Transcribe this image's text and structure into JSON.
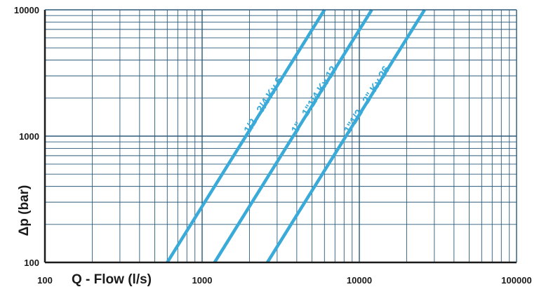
{
  "chart_data": {
    "type": "line",
    "title": "",
    "xlabel": "Q - Flow (l/s)",
    "ylabel": "Δp (bar)",
    "x_scale": "log",
    "y_scale": "log",
    "xlim": [
      100,
      100000
    ],
    "ylim": [
      100,
      10000
    ],
    "x_ticks": [
      "100",
      "1000",
      "10000",
      "100000"
    ],
    "y_ticks": [
      "100",
      "1000",
      "10000"
    ],
    "grid": true,
    "legend": "none",
    "colors": {
      "series": "#3aaad8",
      "grid": "#2a5a7a",
      "axis": "#1a1a1a"
    },
    "series": [
      {
        "name": "1/2 - 3/4 Kv 6",
        "x": [
          600,
          6000
        ],
        "y": [
          100,
          10000
        ]
      },
      {
        "name": "1\" - 1\"1/4 Kv 12",
        "x": [
          1200,
          12000
        ],
        "y": [
          100,
          10000
        ]
      },
      {
        "name": "1\"1/2 - 2\" Kv 26",
        "x": [
          2600,
          26000
        ],
        "y": [
          100,
          10000
        ]
      }
    ]
  }
}
